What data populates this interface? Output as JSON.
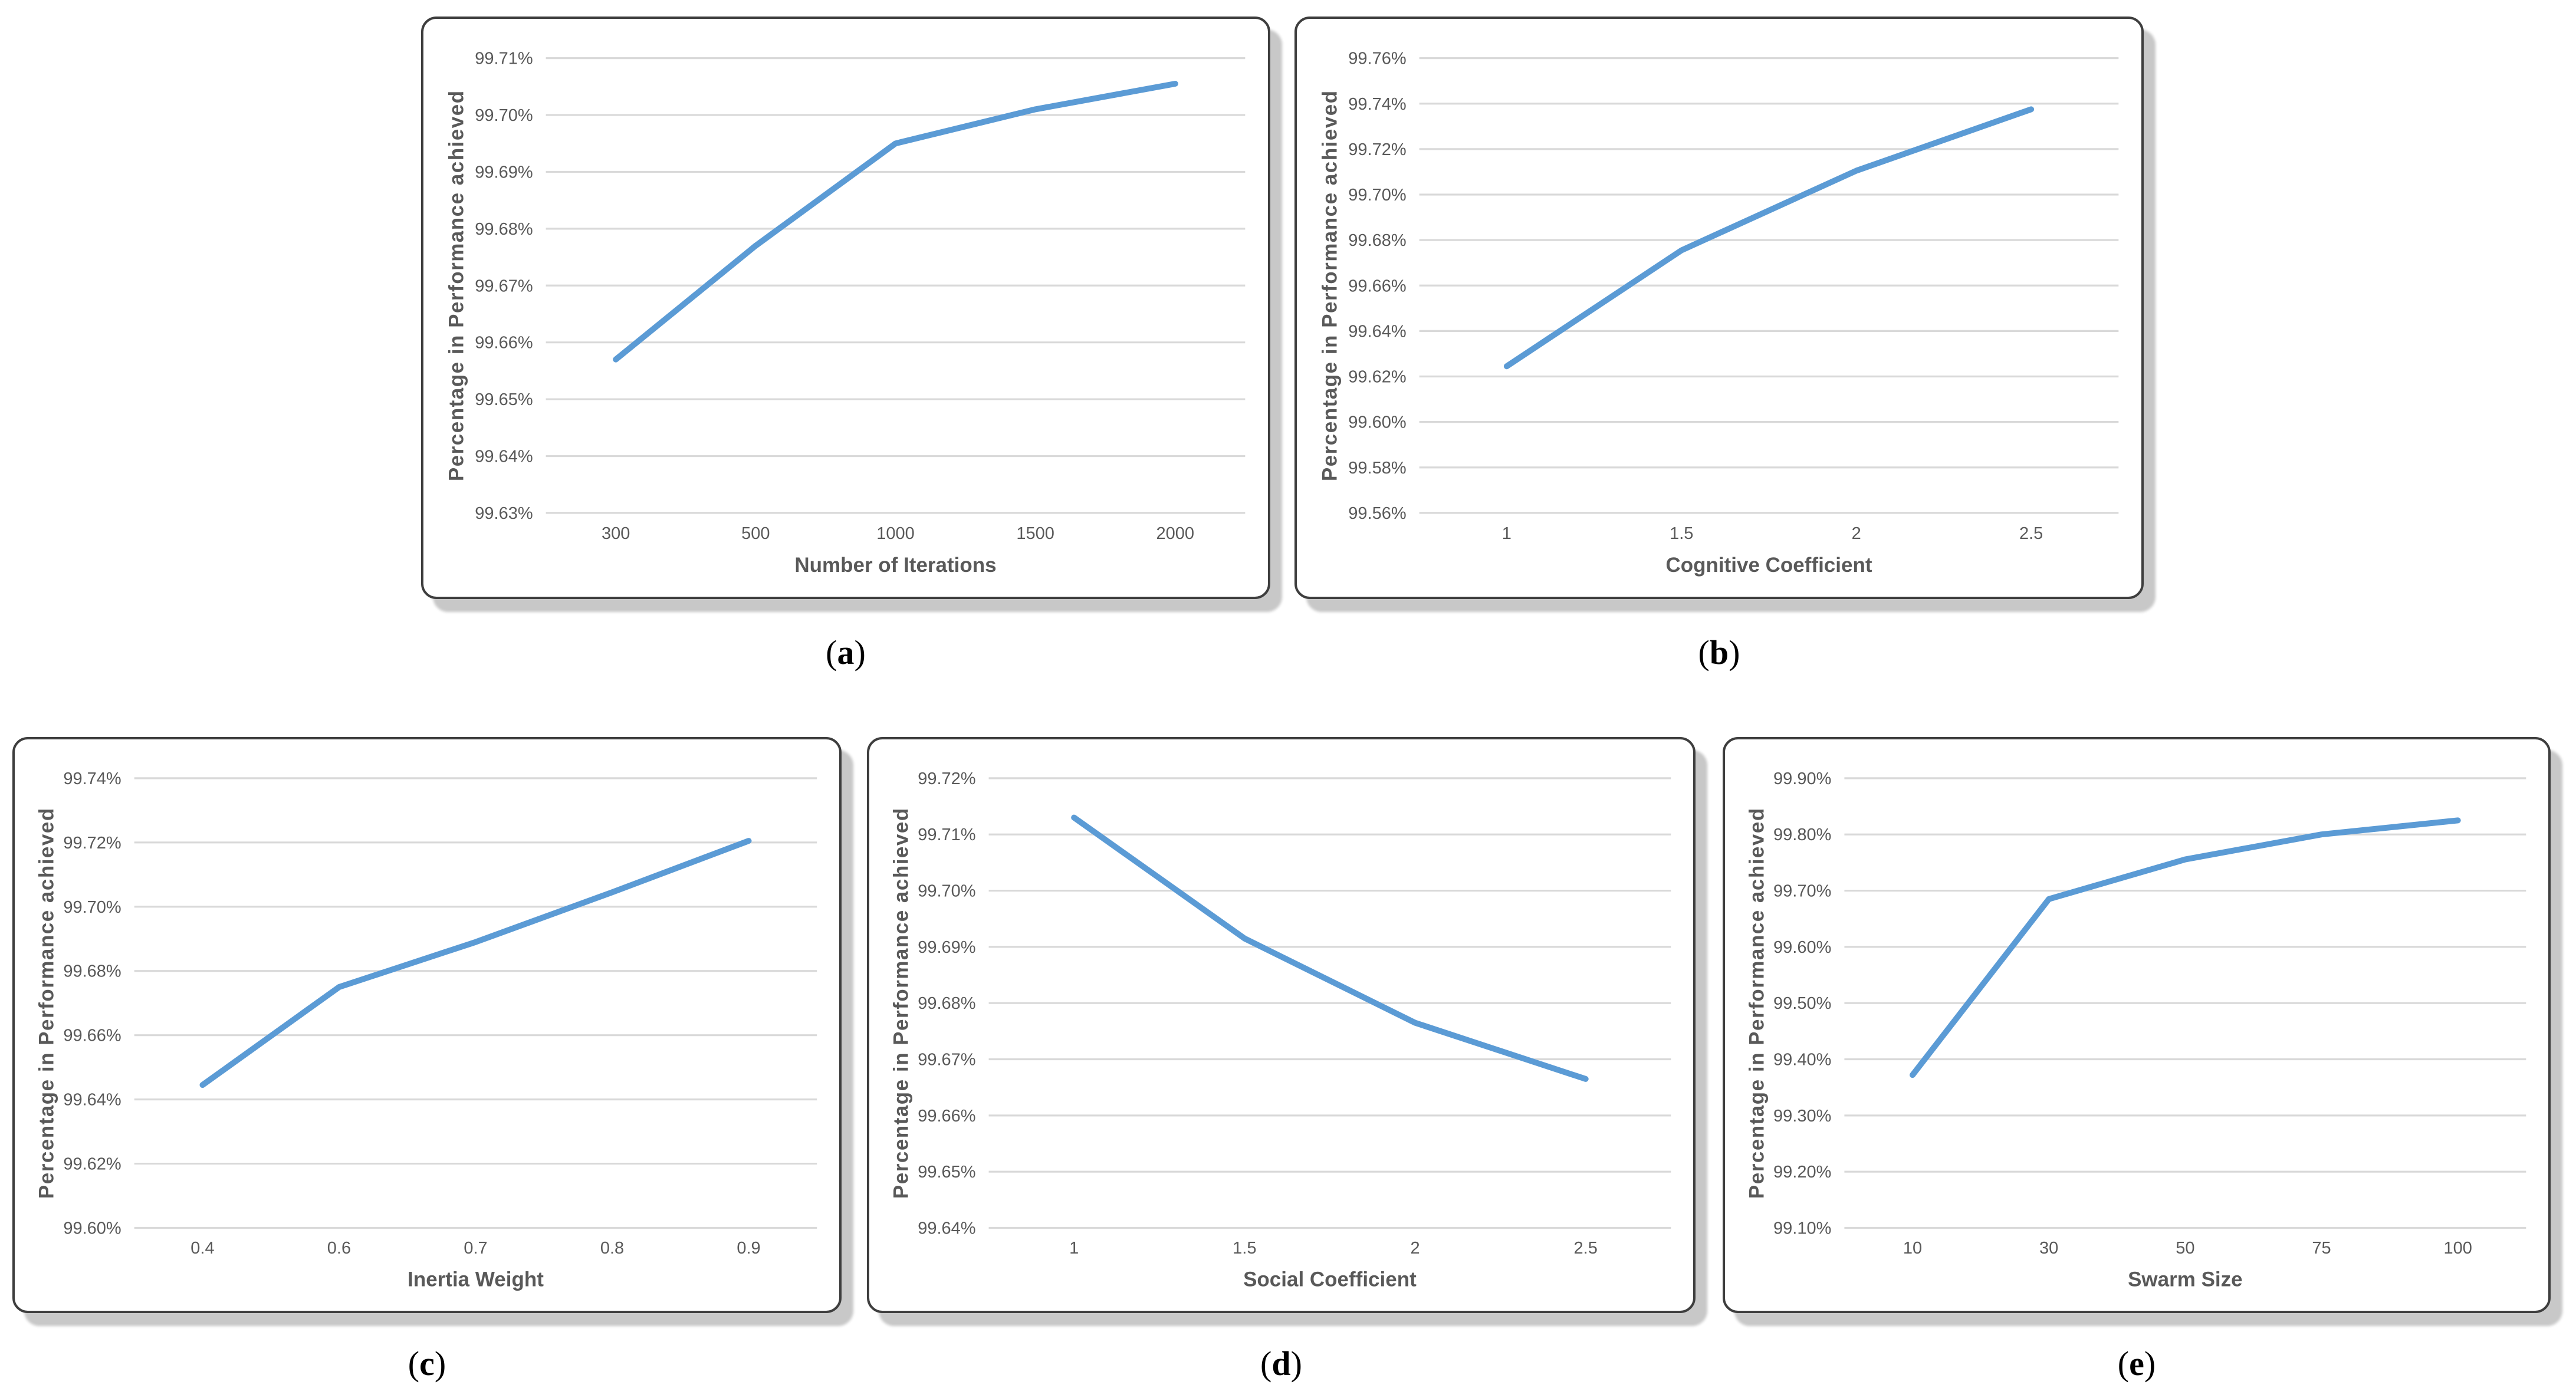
{
  "figure": {
    "description_visible_text_only": true,
    "line_color": "#5B9BD5",
    "grid_color": "#D9D9D9",
    "label_color": "#595959",
    "card_border_color": "#3E3E3E",
    "card_shadow_color": "#C8C8C8",
    "background_color": "#FFFFFF"
  },
  "chart_data": [
    {
      "id": "a",
      "type": "line",
      "caption": {
        "open": "(",
        "letter": "a",
        "close": ")"
      },
      "title": "",
      "xlabel": "Number of Iterations",
      "ylabel": "Percentage in Performance achieved",
      "categories": [
        "300",
        "500",
        "1000",
        "1500",
        "2000"
      ],
      "values": [
        99.657,
        99.677,
        99.695,
        99.701,
        99.7055
      ],
      "ylim": [
        99.63,
        99.71
      ],
      "y_step": 0.01,
      "y_ticks": [
        "99.71%",
        "99.70%",
        "99.69%",
        "99.68%",
        "99.67%",
        "99.66%",
        "99.65%",
        "99.64%",
        "99.63%"
      ],
      "grid": "horizontal",
      "legend": "none"
    },
    {
      "id": "b",
      "type": "line",
      "caption": {
        "open": "(",
        "letter": "b",
        "close": ")"
      },
      "title": "",
      "xlabel": "Cognitive Coefficient",
      "ylabel": "Percentage in Performance achieved",
      "categories": [
        "1",
        "1.5",
        "2",
        "2.5"
      ],
      "values": [
        99.6245,
        99.6755,
        99.7105,
        99.7375
      ],
      "ylim": [
        99.56,
        99.76
      ],
      "y_step": 0.02,
      "y_ticks": [
        "99.76%",
        "99.74%",
        "99.72%",
        "99.70%",
        "99.68%",
        "99.66%",
        "99.64%",
        "99.62%",
        "99.60%",
        "99.58%",
        "99.56%"
      ],
      "grid": "horizontal",
      "legend": "none"
    },
    {
      "id": "c",
      "type": "line",
      "caption": {
        "open": "(",
        "letter": "c",
        "close": ")"
      },
      "title": "",
      "xlabel": "Inertia Weight",
      "ylabel": "Percentage in Performance achieved",
      "categories": [
        "0.4",
        "0.6",
        "0.7",
        "0.8",
        "0.9"
      ],
      "values": [
        99.6445,
        99.675,
        99.689,
        99.7045,
        99.7205
      ],
      "ylim": [
        99.6,
        99.74
      ],
      "y_step": 0.02,
      "y_ticks": [
        "99.74%",
        "99.72%",
        "99.70%",
        "99.68%",
        "99.66%",
        "99.64%",
        "99.62%",
        "99.60%"
      ],
      "grid": "horizontal",
      "legend": "none"
    },
    {
      "id": "d",
      "type": "line",
      "caption": {
        "open": "(",
        "letter": "d",
        "close": ")"
      },
      "title": "",
      "xlabel": "Social Coefficient",
      "ylabel": "Percentage in Performance achieved",
      "categories": [
        "1",
        "1.5",
        "2",
        "2.5"
      ],
      "values": [
        99.713,
        99.6915,
        99.6765,
        99.6665
      ],
      "ylim": [
        99.64,
        99.72
      ],
      "y_step": 0.01,
      "y_ticks": [
        "99.72%",
        "99.71%",
        "99.70%",
        "99.69%",
        "99.68%",
        "99.67%",
        "99.66%",
        "99.65%",
        "99.64%"
      ],
      "grid": "horizontal",
      "legend": "none"
    },
    {
      "id": "e",
      "type": "line",
      "caption": {
        "open": "(",
        "letter": "e",
        "close": ")"
      },
      "title": "",
      "xlabel": "Swarm Size",
      "ylabel": "Percentage in Performance achieved",
      "categories": [
        "10",
        "30",
        "50",
        "75",
        "100"
      ],
      "values": [
        99.372,
        99.685,
        99.7555,
        99.8,
        99.825
      ],
      "ylim": [
        99.1,
        99.9
      ],
      "y_step": 0.1,
      "y_ticks": [
        "99.90%",
        "99.80%",
        "99.70%",
        "99.60%",
        "99.50%",
        "99.40%",
        "99.30%",
        "99.20%",
        "99.10%"
      ],
      "grid": "horizontal",
      "legend": "none"
    }
  ]
}
